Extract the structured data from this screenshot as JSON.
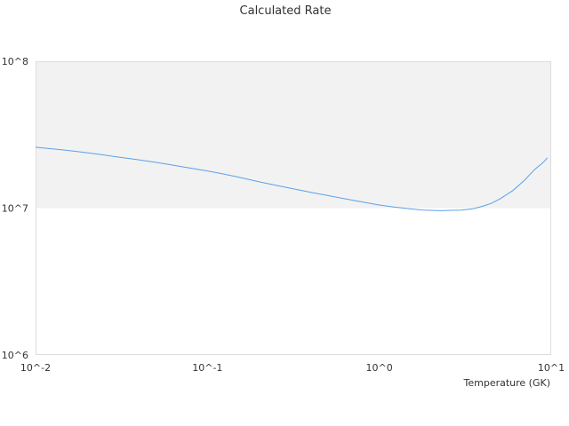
{
  "chart_data": {
    "type": "line",
    "title": "Calculated Rate",
    "xlabel": "Temperature (GK)",
    "ylabel": "",
    "x_scale": "log",
    "y_scale": "log",
    "xlim": [
      0.01,
      10
    ],
    "ylim": [
      1000000,
      100000000
    ],
    "x_ticks": [
      {
        "value": 0.01,
        "label": "10^-2"
      },
      {
        "value": 0.1,
        "label": "10^-1"
      },
      {
        "value": 1,
        "label": "10^0"
      },
      {
        "value": 10,
        "label": "10^1"
      }
    ],
    "y_ticks": [
      {
        "value": 1000000,
        "label": "10^6"
      },
      {
        "value": 10000000,
        "label": "10^7"
      },
      {
        "value": 100000000,
        "label": "10^8"
      }
    ],
    "shaded_band": {
      "y_from": 10000000,
      "y_to": 100000000,
      "color": "#f2f2f2"
    },
    "grid": false,
    "series": [
      {
        "color": "#5aa1e8",
        "x": [
          0.01,
          0.015,
          0.02,
          0.025,
          0.03,
          0.04,
          0.05,
          0.06,
          0.07,
          0.08,
          0.1,
          0.12,
          0.15,
          0.2,
          0.25,
          0.3,
          0.4,
          0.5,
          0.6,
          0.8,
          1.0,
          1.2,
          1.5,
          1.8,
          2.0,
          2.3,
          2.6,
          3.0,
          3.5,
          4.0,
          4.5,
          5.0,
          6.0,
          7.0,
          8.0,
          9.0,
          9.5
        ],
        "y": [
          26000000,
          24800000,
          23800000,
          23000000,
          22300000,
          21300000,
          20500000,
          19800000,
          19200000,
          18700000,
          17900000,
          17200000,
          16300000,
          15100000,
          14300000,
          13700000,
          12800000,
          12200000,
          11700000,
          11000000,
          10500000,
          10200000,
          9900000,
          9700000,
          9650000,
          9600000,
          9650000,
          9700000,
          9900000,
          10300000,
          10800000,
          11500000,
          13200000,
          15500000,
          18300000,
          20500000,
          22000000
        ]
      }
    ]
  }
}
